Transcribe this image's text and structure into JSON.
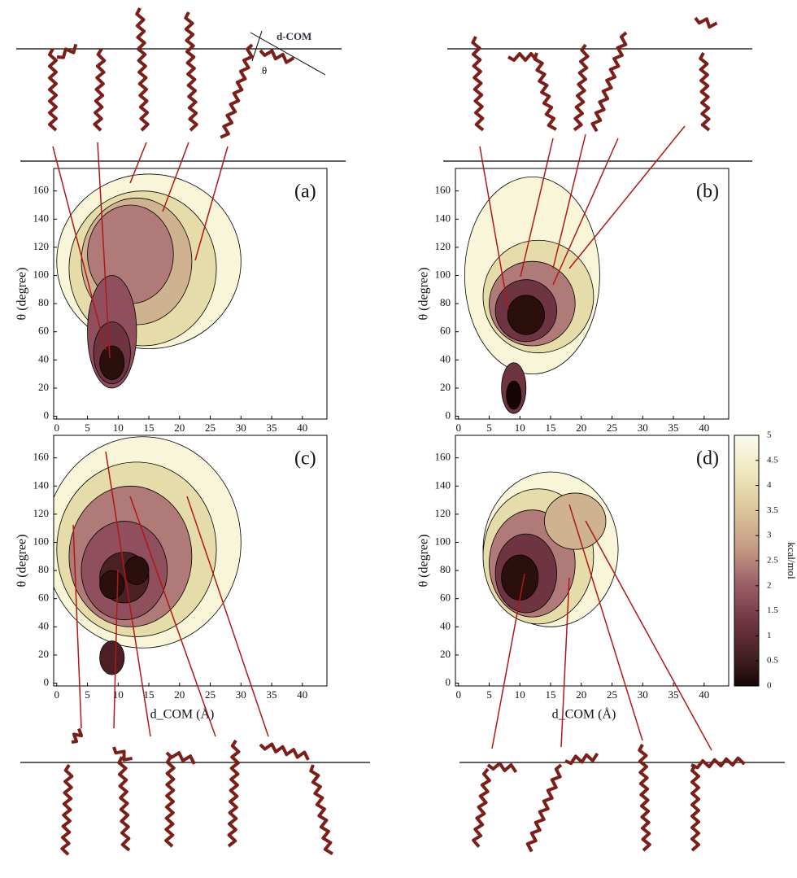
{
  "chart_data": [
    {
      "type": "contour",
      "panel_label": "(a)",
      "y_label": "θ (degree)",
      "xlim": [
        -0.5,
        44
      ],
      "ylim": [
        -2,
        176
      ],
      "xticks": [
        0,
        5,
        10,
        15,
        20,
        25,
        30,
        35,
        40
      ],
      "yticks": [
        0,
        20,
        40,
        60,
        80,
        100,
        120,
        140,
        160
      ]
    },
    {
      "type": "contour",
      "panel_label": "(b)",
      "y_label": "θ (degree)",
      "xlim": [
        -0.5,
        44
      ],
      "ylim": [
        -2,
        176
      ],
      "xticks": [
        0,
        5,
        10,
        15,
        20,
        25,
        30,
        35,
        40
      ],
      "yticks": [
        0,
        20,
        40,
        60,
        80,
        100,
        120,
        140,
        160
      ]
    },
    {
      "type": "contour",
      "panel_label": "(c)",
      "y_label": "θ (degree)",
      "x_label": "d_COM (Å)",
      "xlim": [
        -0.5,
        44
      ],
      "ylim": [
        -2,
        176
      ],
      "xticks": [
        0,
        5,
        10,
        15,
        20,
        25,
        30,
        35,
        40
      ],
      "yticks": [
        0,
        20,
        40,
        60,
        80,
        100,
        120,
        140,
        160
      ]
    },
    {
      "type": "contour",
      "panel_label": "(d)",
      "y_label": "θ (degree)",
      "x_label": "d_COM (Å)",
      "xlim": [
        -0.5,
        44
      ],
      "ylim": [
        -2,
        176
      ],
      "xticks": [
        0,
        5,
        10,
        15,
        20,
        25,
        30,
        35,
        40
      ],
      "yticks": [
        0,
        20,
        40,
        60,
        80,
        100,
        120,
        140,
        160
      ]
    },
    {
      "type": "colorbar",
      "label": "kcal/mol",
      "ylim": [
        0,
        5
      ],
      "yticks": [
        0,
        0.5,
        1,
        1.5,
        2,
        2.5,
        3,
        3.5,
        4,
        4.5,
        5
      ]
    }
  ],
  "annotations": [
    "d-COM",
    "θ"
  ]
}
